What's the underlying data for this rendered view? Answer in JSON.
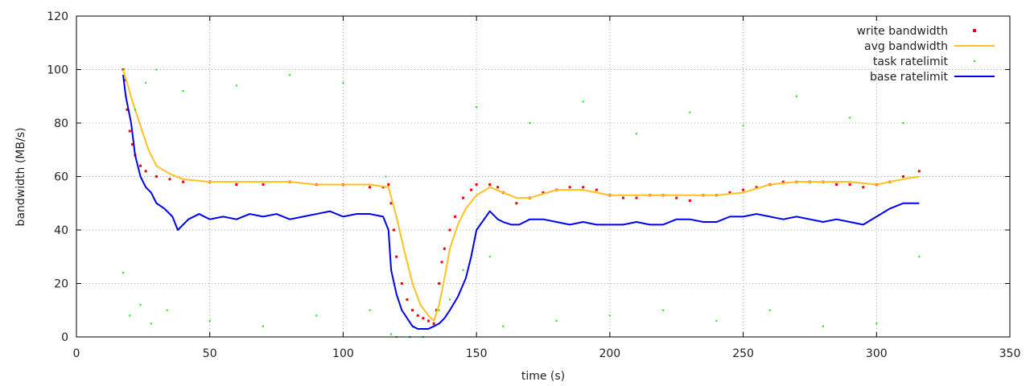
{
  "chart_data": {
    "type": "line",
    "title": "",
    "xlabel": "time (s)",
    "ylabel": "bandwidth (MB/s)",
    "xlim": [
      0,
      350
    ],
    "ylim": [
      0,
      120
    ],
    "xticks": [
      0,
      50,
      100,
      150,
      200,
      250,
      300,
      350
    ],
    "yticks": [
      0,
      20,
      40,
      60,
      80,
      100,
      120
    ],
    "grid": true,
    "legend_position": "top-right",
    "series": [
      {
        "name": "write bandwidth",
        "style": "points",
        "color": "#ee0000",
        "x": [
          17.5,
          18,
          19,
          20,
          21,
          22,
          24,
          26,
          30,
          35,
          40,
          50,
          60,
          70,
          80,
          90,
          100,
          110,
          115,
          117,
          118,
          119,
          120,
          122,
          124,
          126,
          128,
          130,
          132,
          134,
          135,
          136,
          137,
          138,
          140,
          142,
          145,
          148,
          150,
          155,
          158,
          160,
          165,
          170,
          175,
          180,
          185,
          190,
          195,
          200,
          205,
          210,
          215,
          220,
          225,
          230,
          235,
          240,
          245,
          250,
          255,
          260,
          265,
          270,
          275,
          280,
          285,
          290,
          295,
          300,
          305,
          310,
          316
        ],
        "y": [
          100,
          96,
          85,
          77,
          72,
          68,
          64,
          62,
          60,
          59,
          58,
          58,
          57,
          57,
          58,
          57,
          57,
          56,
          56,
          57,
          50,
          40,
          30,
          20,
          14,
          10,
          8,
          7,
          6,
          5,
          10,
          20,
          28,
          33,
          40,
          45,
          52,
          55,
          57,
          57,
          56,
          54,
          50,
          52,
          54,
          55,
          56,
          56,
          55,
          53,
          52,
          52,
          53,
          53,
          52,
          51,
          53,
          53,
          54,
          55,
          56,
          57,
          58,
          58,
          58,
          58,
          57,
          57,
          56,
          57,
          58,
          60,
          62
        ]
      },
      {
        "name": "avg bandwidth",
        "style": "line",
        "color": "#ffc020",
        "x": [
          17.5,
          19,
          21,
          23,
          25,
          27,
          30,
          35,
          40,
          50,
          60,
          70,
          80,
          90,
          100,
          110,
          117,
          120,
          123,
          126,
          129,
          132,
          134,
          136,
          138,
          140,
          143,
          146,
          150,
          155,
          160,
          165,
          170,
          180,
          190,
          200,
          210,
          220,
          230,
          240,
          250,
          260,
          270,
          280,
          290,
          300,
          310,
          316
        ],
        "y": [
          100,
          95,
          88,
          82,
          76,
          70,
          64,
          61,
          59,
          58,
          58,
          58,
          58,
          57,
          57,
          57,
          56,
          45,
          32,
          20,
          12,
          8,
          6,
          12,
          22,
          33,
          42,
          48,
          53,
          56,
          54,
          52,
          52,
          55,
          55,
          53,
          53,
          53,
          53,
          53,
          54,
          57,
          58,
          58,
          58,
          57,
          59,
          60
        ]
      },
      {
        "name": "task ratelimit",
        "style": "points",
        "color": "#00ee00",
        "x": [
          17.5,
          18.5,
          20,
          22,
          24,
          26,
          28,
          30,
          34,
          40,
          50,
          60,
          70,
          80,
          90,
          100,
          110,
          116,
          118,
          120,
          125,
          130,
          134,
          136,
          140,
          145,
          150,
          155,
          160,
          170,
          180,
          190,
          200,
          210,
          220,
          230,
          240,
          250,
          260,
          270,
          280,
          290,
          300,
          310,
          316
        ],
        "y": [
          24,
          90,
          8,
          85,
          12,
          95,
          5,
          100,
          10,
          92,
          6,
          94,
          4,
          98,
          8,
          95,
          10,
          60,
          1,
          0,
          0,
          0,
          4,
          10,
          14,
          25,
          86,
          30,
          4,
          80,
          6,
          88,
          8,
          76,
          10,
          84,
          6,
          79,
          10,
          90,
          4,
          82,
          5,
          80,
          30
        ]
      },
      {
        "name": "base ratelimit",
        "style": "line",
        "color": "#0000ee",
        "x": [
          17.5,
          18.5,
          19.5,
          20.5,
          22,
          24,
          26,
          28,
          30,
          33,
          36,
          38,
          42,
          46,
          50,
          55,
          60,
          65,
          70,
          75,
          80,
          85,
          90,
          95,
          100,
          105,
          110,
          115,
          117,
          118,
          120,
          122,
          124,
          126,
          128,
          130,
          132,
          134,
          136,
          138,
          140,
          143,
          146,
          148,
          150,
          155,
          158,
          160,
          163,
          166,
          170,
          175,
          180,
          185,
          190,
          195,
          200,
          205,
          210,
          215,
          220,
          225,
          230,
          235,
          240,
          245,
          250,
          255,
          260,
          265,
          270,
          275,
          280,
          285,
          290,
          295,
          300,
          305,
          310,
          316
        ],
        "y": [
          98,
          90,
          85,
          80,
          68,
          60,
          56,
          54,
          50,
          48,
          45,
          40,
          44,
          46,
          44,
          45,
          44,
          46,
          45,
          46,
          44,
          45,
          46,
          47,
          45,
          46,
          46,
          45,
          40,
          25,
          16,
          10,
          7,
          4,
          3,
          3,
          3,
          4,
          5,
          7,
          10,
          15,
          22,
          30,
          40,
          47,
          44,
          43,
          42,
          42,
          44,
          44,
          43,
          42,
          43,
          42,
          42,
          42,
          43,
          42,
          42,
          44,
          44,
          43,
          43,
          45,
          45,
          46,
          45,
          44,
          45,
          44,
          43,
          44,
          43,
          42,
          45,
          48,
          50,
          50
        ]
      }
    ]
  }
}
